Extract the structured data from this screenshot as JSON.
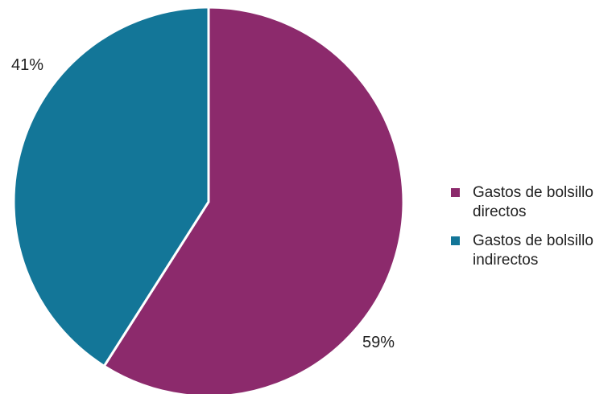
{
  "chart_data": {
    "type": "pie",
    "slices": [
      {
        "name": "Gastos de bolsillo directos",
        "value": 59,
        "label": "59%",
        "color": "#8c2a6c"
      },
      {
        "name": "Gastos de bolsillo indirectos",
        "value": 41,
        "label": "41%",
        "color": "#137698"
      }
    ],
    "start_angle_deg": 0,
    "direction": "clockwise",
    "legend_position": "right"
  }
}
